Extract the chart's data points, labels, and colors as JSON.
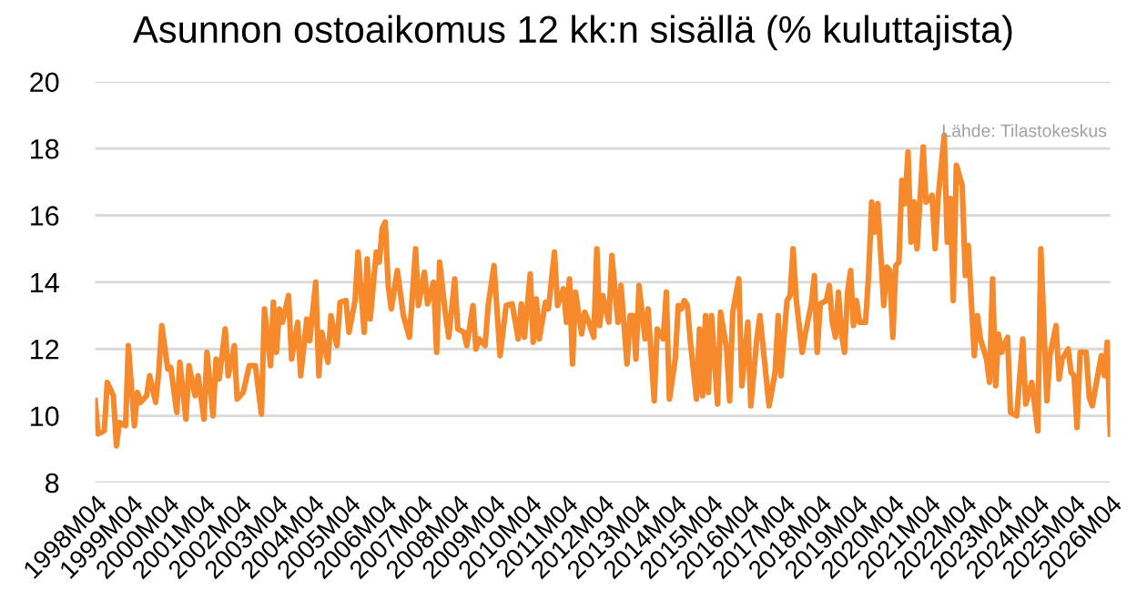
{
  "chart_data": {
    "type": "line",
    "title": "Asunnon ostoaikomus 12 kk:n sisällä (% kuluttajista)",
    "annotations": [
      "Lähde: Tilastokeskus"
    ],
    "x": [
      "1998-04",
      "1998-05",
      "1998-07",
      "1998-08",
      "1998-10",
      "1998-11",
      "1998-12",
      "1999-02",
      "1999-03",
      "1999-05",
      "1999-06",
      "1999-07",
      "1999-09",
      "1999-10",
      "1999-12",
      "2000-01",
      "2000-02",
      "2000-04",
      "2000-05",
      "2000-07",
      "2000-08",
      "2000-10",
      "2000-11",
      "2001-01",
      "2001-02",
      "2001-04",
      "2001-05",
      "2001-07",
      "2001-08",
      "2001-09",
      "2001-11",
      "2001-12",
      "2002-02",
      "2002-03",
      "2002-05",
      "2002-07",
      "2002-09",
      "2002-11",
      "2002-12",
      "2003-02",
      "2003-03",
      "2003-04",
      "2003-05",
      "2003-06",
      "2003-08",
      "2003-09",
      "2003-11",
      "2003-12",
      "2004-02",
      "2004-03",
      "2004-05",
      "2004-06",
      "2004-07",
      "2004-09",
      "2004-10",
      "2004-12",
      "2005-01",
      "2005-03",
      "2005-04",
      "2005-06",
      "2005-07",
      "2005-09",
      "2005-10",
      "2005-11",
      "2006-01",
      "2006-02",
      "2006-03",
      "2006-04",
      "2006-05",
      "2006-06",
      "2006-08",
      "2006-10",
      "2006-12",
      "2007-02",
      "2007-03",
      "2007-05",
      "2007-06",
      "2007-08",
      "2007-09",
      "2007-10",
      "2007-12",
      "2008-01",
      "2008-03",
      "2008-04",
      "2008-06",
      "2008-07",
      "2008-09",
      "2008-10",
      "2008-11",
      "2009-01",
      "2009-02",
      "2009-04",
      "2009-06",
      "2009-08",
      "2009-10",
      "2009-12",
      "2010-01",
      "2010-02",
      "2010-04",
      "2010-05",
      "2010-06",
      "2010-07",
      "2010-09",
      "2010-10",
      "2010-12",
      "2011-01",
      "2011-03",
      "2011-04",
      "2011-05",
      "2011-06",
      "2011-07",
      "2011-09",
      "2011-10",
      "2011-11",
      "2012-01",
      "2012-02",
      "2012-03",
      "2012-04",
      "2012-06",
      "2012-07",
      "2012-09",
      "2012-10",
      "2012-12",
      "2013-01",
      "2013-02",
      "2013-03",
      "2013-04",
      "2013-06",
      "2013-07",
      "2013-09",
      "2013-10",
      "2013-12",
      "2014-01",
      "2014-02",
      "2014-04",
      "2014-05",
      "2014-06",
      "2014-07",
      "2014-08",
      "2014-09",
      "2014-11",
      "2014-12",
      "2015-01",
      "2015-02",
      "2015-03",
      "2015-04",
      "2015-06",
      "2015-07",
      "2015-09",
      "2015-10",
      "2015-11",
      "2016-01",
      "2016-02",
      "2016-04",
      "2016-05",
      "2016-07",
      "2016-08",
      "2016-11",
      "2017-01",
      "2017-02",
      "2017-03",
      "2017-05",
      "2017-06",
      "2017-07",
      "2017-08",
      "2017-10",
      "2017-11",
      "2018-01",
      "2018-02",
      "2018-03",
      "2018-04",
      "2018-06",
      "2018-07",
      "2018-08",
      "2018-09",
      "2018-10",
      "2018-11",
      "2018-12",
      "2019-01",
      "2019-02",
      "2019-03",
      "2019-04",
      "2019-05",
      "2019-07",
      "2019-08",
      "2019-09",
      "2019-10",
      "2019-11",
      "2020-01",
      "2020-02",
      "2020-03",
      "2020-04",
      "2020-05",
      "2020-06",
      "2020-07",
      "2020-08",
      "2020-09",
      "2020-10",
      "2020-11",
      "2020-12",
      "2021-02",
      "2021-03",
      "2021-05",
      "2021-06",
      "2021-07",
      "2021-09",
      "2021-10",
      "2021-11",
      "2021-12",
      "2022-01",
      "2022-03",
      "2022-04",
      "2022-05",
      "2022-07",
      "2022-08",
      "2022-09",
      "2022-11",
      "2022-12",
      "2023-01",
      "2023-02",
      "2023-03",
      "2023-04",
      "2023-06",
      "2023-07",
      "2023-09",
      "2023-11",
      "2023-12",
      "2024-02",
      "2024-03",
      "2024-04",
      "2024-05",
      "2024-07",
      "2024-08",
      "2024-10",
      "2024-11",
      "2024-12",
      "2025-02",
      "2025-03",
      "2025-04",
      "2025-05",
      "2025-06",
      "2025-08",
      "2025-09",
      "2025-10",
      "2025-12",
      "2026-01",
      "2026-02",
      "2026-03",
      "2026-04"
    ],
    "series": [
      {
        "color": "#f5892b",
        "values": [
          10.45,
          9.46,
          9.55,
          11.0,
          10.6,
          9.1,
          9.8,
          9.7,
          12.1,
          9.7,
          10.7,
          10.4,
          10.6,
          11.2,
          10.4,
          11.3,
          12.7,
          11.4,
          11.45,
          10.1,
          11.6,
          9.9,
          11.5,
          10.6,
          11.2,
          9.9,
          11.9,
          10.0,
          11.7,
          11.1,
          12.6,
          11.2,
          12.1,
          10.5,
          10.7,
          11.5,
          11.5,
          10.05,
          13.2,
          11.5,
          13.4,
          11.9,
          13.2,
          12.8,
          13.6,
          11.7,
          12.8,
          11.2,
          12.9,
          12.25,
          14.0,
          11.2,
          12.5,
          11.6,
          13.0,
          12.1,
          13.4,
          13.45,
          12.5,
          13.45,
          14.9,
          12.5,
          14.7,
          12.9,
          14.9,
          14.6,
          15.6,
          15.8,
          13.9,
          13.2,
          14.35,
          13.0,
          12.35,
          15.0,
          13.3,
          14.3,
          13.35,
          14.0,
          11.9,
          14.6,
          13.0,
          12.35,
          14.1,
          12.6,
          12.5,
          12.1,
          13.3,
          12.0,
          12.3,
          12.1,
          13.3,
          14.5,
          11.8,
          13.3,
          13.35,
          12.3,
          13.35,
          12.35,
          14.25,
          12.2,
          13.5,
          12.3,
          13.4,
          13.2,
          14.9,
          13.3,
          13.8,
          12.8,
          14.1,
          11.55,
          13.7,
          12.45,
          13.1,
          12.9,
          12.35,
          15.0,
          12.7,
          13.6,
          12.8,
          14.8,
          12.8,
          13.9,
          11.55,
          13.0,
          13.0,
          11.7,
          13.9,
          12.3,
          13.2,
          10.45,
          12.6,
          12.3,
          13.7,
          10.5,
          11.7,
          13.3,
          13.2,
          13.45,
          13.3,
          12.2,
          10.5,
          12.6,
          10.6,
          13.0,
          10.7,
          13.0,
          10.35,
          13.1,
          12.0,
          10.45,
          13.1,
          14.1,
          10.9,
          12.8,
          10.3,
          12.3,
          13.0,
          10.3,
          11.3,
          13.0,
          11.2,
          13.45,
          13.6,
          15.0,
          13.5,
          11.9,
          12.45,
          13.35,
          14.2,
          11.9,
          13.35,
          13.45,
          13.9,
          12.8,
          12.35,
          13.7,
          12.45,
          11.9,
          13.7,
          14.35,
          12.7,
          13.45,
          12.8,
          12.8,
          14.2,
          16.4,
          15.5,
          16.35,
          13.3,
          14.45,
          14.35,
          12.35,
          14.5,
          14.6,
          17.05,
          16.35,
          17.9,
          15.2,
          16.4,
          15.0,
          18.05,
          16.4,
          16.6,
          15.0,
          16.5,
          18.4,
          15.2,
          16.5,
          13.45,
          17.5,
          16.9,
          14.2,
          15.1,
          11.8,
          13.0,
          12.3,
          11.7,
          11.0,
          14.1,
          10.9,
          12.45,
          11.9,
          12.35,
          10.1,
          10.0,
          12.3,
          10.35,
          11.0,
          10.3,
          9.55,
          15.0,
          10.45,
          11.8,
          12.7,
          11.1,
          11.7,
          12.0,
          11.3,
          11.2,
          9.65,
          11.9,
          11.9,
          10.55,
          10.3,
          11.3,
          11.8,
          11.2,
          12.2,
          9.45
        ]
      }
    ],
    "xlim": [
      "1998-04",
      "2026-04"
    ],
    "xticks": [
      {
        "value": "1998-04",
        "label": "1998M04"
      },
      {
        "value": "1999-04",
        "label": "1999M04"
      },
      {
        "value": "2000-04",
        "label": "2000M04"
      },
      {
        "value": "2001-04",
        "label": "2001M04"
      },
      {
        "value": "2002-04",
        "label": "2002M04"
      },
      {
        "value": "2003-04",
        "label": "2003M04"
      },
      {
        "value": "2004-04",
        "label": "2004M04"
      },
      {
        "value": "2005-04",
        "label": "2005M04"
      },
      {
        "value": "2006-04",
        "label": "2006M04"
      },
      {
        "value": "2007-04",
        "label": "2007M04"
      },
      {
        "value": "2008-04",
        "label": "2008M04"
      },
      {
        "value": "2009-04",
        "label": "2009M04"
      },
      {
        "value": "2010-04",
        "label": "2010M04"
      },
      {
        "value": "2011-04",
        "label": "2011M04"
      },
      {
        "value": "2012-04",
        "label": "2012M04"
      },
      {
        "value": "2013-04",
        "label": "2013M04"
      },
      {
        "value": "2014-04",
        "label": "2014M04"
      },
      {
        "value": "2015-04",
        "label": "2015M04"
      },
      {
        "value": "2016-04",
        "label": "2016M04"
      },
      {
        "value": "2017-04",
        "label": "2017M04"
      },
      {
        "value": "2018-04",
        "label": "2018M04"
      },
      {
        "value": "2019-04",
        "label": "2019M04"
      },
      {
        "value": "2020-04",
        "label": "2020M04"
      },
      {
        "value": "2021-04",
        "label": "2021M04"
      },
      {
        "value": "2022-04",
        "label": "2022M04"
      },
      {
        "value": "2023-04",
        "label": "2023M04"
      },
      {
        "value": "2024-04",
        "label": "2024M04"
      },
      {
        "value": "2025-04",
        "label": "2025M04"
      },
      {
        "value": "2026-04",
        "label": "2026M04"
      }
    ],
    "ylim": [
      8,
      20
    ],
    "yticks": [
      8,
      10,
      12,
      14,
      16,
      18,
      20
    ],
    "grid": "y",
    "legend": false,
    "marker": "none",
    "line_style": "solid"
  }
}
